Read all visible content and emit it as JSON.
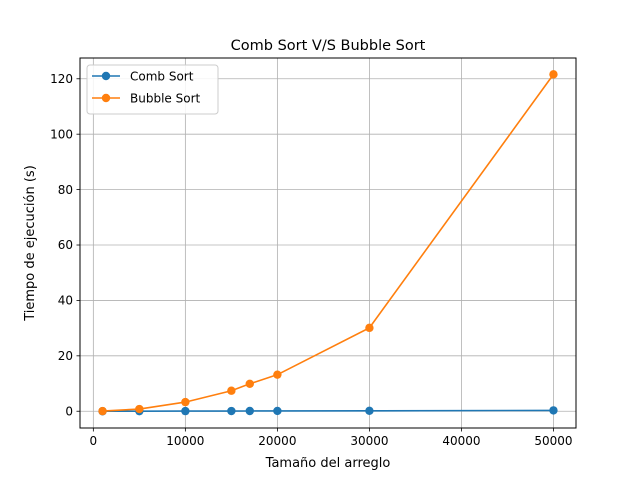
{
  "chart_data": {
    "type": "line",
    "title": "Comb Sort V/S Bubble Sort",
    "xlabel": "Tamaño del arreglo",
    "ylabel": "Tiempo de ejecución (s)",
    "xlim": [
      -1450,
      52450
    ],
    "ylim": [
      -6.05,
      127.5
    ],
    "xticks": [
      0,
      10000,
      20000,
      30000,
      40000,
      50000
    ],
    "yticks": [
      0,
      20,
      40,
      60,
      80,
      100,
      120
    ],
    "grid": true,
    "legend_position": "top-left",
    "series": [
      {
        "name": "Comb Sort",
        "color": "#1f77b4",
        "x": [
          1000,
          5000,
          10000,
          15000,
          17000,
          20000,
          30000,
          50000
        ],
        "y": [
          0.0,
          0.02,
          0.05,
          0.08,
          0.09,
          0.1,
          0.16,
          0.3
        ]
      },
      {
        "name": "Bubble Sort",
        "color": "#ff7f0e",
        "x": [
          1000,
          5000,
          10000,
          15000,
          17000,
          20000,
          30000,
          50000
        ],
        "y": [
          0.05,
          0.8,
          3.3,
          7.4,
          9.9,
          13.2,
          30.1,
          121.6
        ]
      }
    ]
  }
}
